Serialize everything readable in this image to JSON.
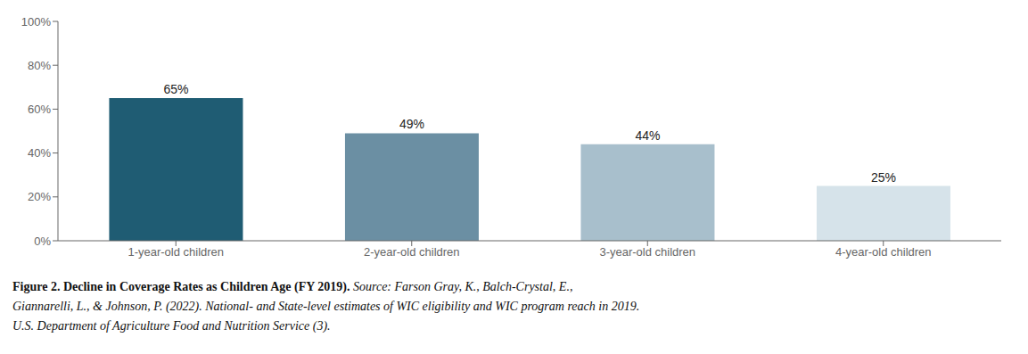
{
  "chart_data": {
    "type": "bar",
    "title": "Figure 2. Decline in Coverage Rates as Children Age (FY 2019).",
    "annotations": [
      " Source: Farson Gray, K., Balch-Crystal, E.,",
      "Giannarelli, L., & Johnson, P. (2022). National- and State-level estimates of WIC eligibility and WIC program reach in 2019.",
      "U.S. Department of Agriculture Food and Nutrition Service (3)."
    ],
    "categories": [
      "1-year-old children",
      "2-year-old children",
      "3-year-old children",
      "4-year-old children"
    ],
    "values": [
      0.65,
      0.49,
      0.44,
      0.25
    ],
    "value_labels": [
      "65%",
      "49%",
      "44%",
      "25%"
    ],
    "data_labels": true,
    "colors": [
      "#1f5c73",
      "#6b8fa3",
      "#a8bfcc",
      "#d6e3ea"
    ],
    "ylim": [
      0,
      1.0
    ],
    "yticks": [
      {
        "value": 0.0,
        "label": "0%"
      },
      {
        "value": 0.2,
        "label": "20%"
      },
      {
        "value": 0.4,
        "label": "40%"
      },
      {
        "value": 0.6,
        "label": "60%"
      },
      {
        "value": 0.8,
        "label": "80%"
      },
      {
        "value": 1.0,
        "label": "100%"
      }
    ]
  }
}
